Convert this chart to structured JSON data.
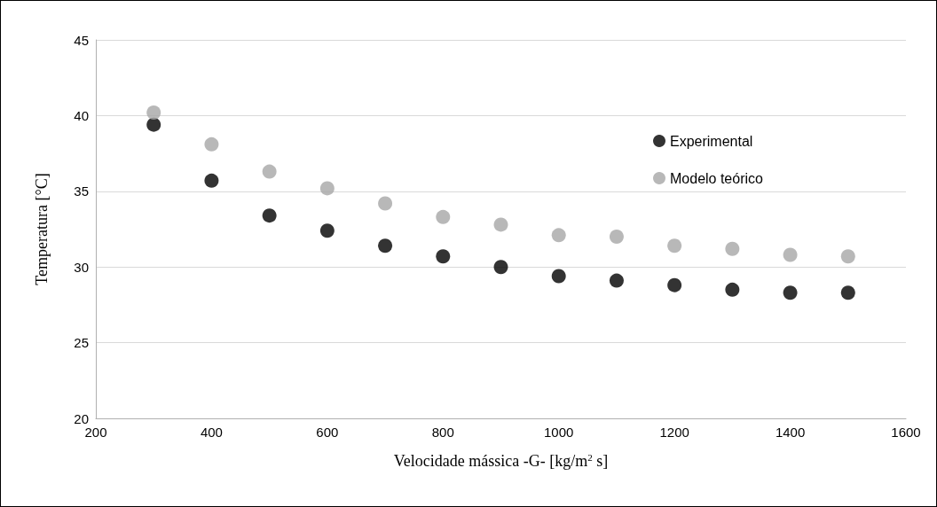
{
  "chart_data": {
    "type": "scatter",
    "xlabel": "Velocidade mássica -G- [kg/m$^{2}$ s]",
    "ylabel": "Temperatura [°C]",
    "x": [
      300,
      400,
      500,
      600,
      700,
      800,
      900,
      1000,
      1100,
      1200,
      1300,
      1400,
      1500
    ],
    "series": [
      {
        "name": "Experimental",
        "color": "#000000",
        "values": [
          39.4,
          35.7,
          33.4,
          32.4,
          31.4,
          30.7,
          30.0,
          29.4,
          29.1,
          28.8,
          28.5,
          28.3,
          28.3
        ]
      },
      {
        "name": "Modelo teórico",
        "color": "#a6a6a6",
        "values": [
          40.2,
          38.1,
          36.3,
          35.2,
          34.2,
          33.3,
          32.8,
          32.1,
          32.0,
          31.4,
          31.2,
          30.8,
          30.7
        ]
      }
    ],
    "xlim": [
      200,
      1600
    ],
    "xticks": [
      200,
      400,
      600,
      800,
      1000,
      1200,
      1400,
      1600
    ],
    "ylim": [
      20,
      45
    ],
    "yticks": [
      20,
      25,
      30,
      35,
      40,
      45
    ],
    "grid": "y",
    "legend": "top right",
    "marker": "circle"
  }
}
